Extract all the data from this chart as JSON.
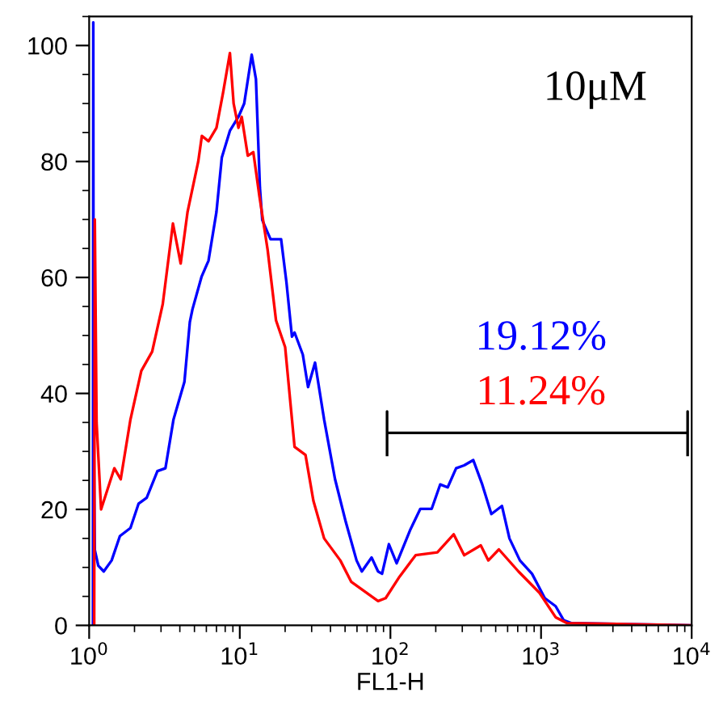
{
  "chart_data": {
    "type": "line",
    "xlabel": "FL1-H",
    "log": "x",
    "xlim": [
      1,
      10000
    ],
    "xticks": [
      {
        "value": 1,
        "label": "10$^{0}$"
      },
      {
        "value": 10,
        "label": "10$^{1}$"
      },
      {
        "value": 100,
        "label": "10$^{2}$"
      },
      {
        "value": 1000,
        "label": "10$^{3}$"
      },
      {
        "value": 10000,
        "label": "10$^{4}$"
      }
    ],
    "ylim": [
      0,
      105
    ],
    "yticks": [
      0,
      20,
      40,
      60,
      80,
      100
    ],
    "grid": false,
    "legend": false,
    "marker": "none",
    "line_style": "solid",
    "annotations": [
      "10μM",
      "19.12%",
      "11.24%"
    ],
    "series": [
      {
        "color": "#0000ff",
        "x": [
          1.06,
          1.065,
          1.07,
          1.09,
          1.15,
          1.25,
          1.41,
          1.6,
          1.88,
          2.13,
          2.41,
          2.84,
          3.21,
          3.63,
          4.29,
          4.66,
          4.85,
          5.57,
          6.2,
          7.0,
          7.6,
          8.6,
          9.8,
          10.7,
          12.0,
          12.8,
          13.6,
          14.1,
          16,
          18.8,
          20.4,
          22.2,
          23.1,
          26.2,
          28.4,
          31.6,
          36.3,
          42.9,
          50.6,
          59.6,
          64.6,
          75,
          82.8,
          88,
          97.7,
          110,
          135,
          158,
          188,
          214,
          240,
          273,
          309,
          355,
          407,
          468,
          550,
          617,
          724,
          871,
          1059,
          1250,
          1413,
          1585,
          10000
        ],
        "values": [
          0,
          104,
          37,
          13,
          10.3,
          9.3,
          11.2,
          15.4,
          16.8,
          21,
          22,
          26.6,
          27.1,
          35.5,
          42,
          52.3,
          54.5,
          60.1,
          62.9,
          71.3,
          80.7,
          85.3,
          87.7,
          90,
          98.4,
          94.2,
          75.5,
          69.9,
          66.6,
          66.6,
          59.2,
          49.8,
          50.5,
          46.7,
          41.1,
          45.3,
          35.5,
          25.2,
          17.8,
          11.2,
          9.3,
          11.7,
          9.3,
          8.9,
          14,
          10.7,
          16.4,
          20.1,
          20.1,
          24.3,
          23.8,
          27.1,
          27.6,
          28.5,
          24.3,
          19.2,
          20.6,
          15,
          11.2,
          8.9,
          4.7,
          3.3,
          0.9,
          0.4,
          0
        ]
      },
      {
        "color": "#000000",
        "x": [
          95,
          95,
          95,
          9400,
          9400,
          9400
        ],
        "values": [
          29.4,
          36.9,
          33.2,
          33.2,
          36.9,
          29.4
        ]
      },
      {
        "color": "#ff0000",
        "x": [
          1.08,
          1.09,
          1.12,
          1.2,
          1.47,
          1.62,
          1.88,
          2.22,
          2.62,
          3.08,
          3.6,
          4.05,
          4.5,
          5.3,
          5.6,
          6.2,
          7.0,
          7.75,
          8.6,
          9.1,
          9.8,
          10.3,
          11.3,
          12.3,
          13.5,
          15.3,
          17.4,
          20,
          23.1,
          27.3,
          30.8,
          36.3,
          46.5,
          55,
          82.8,
          93,
          115,
          147,
          205,
          263,
          309,
          398,
          447,
          525,
          708,
          977,
          1250,
          1480,
          10000
        ],
        "values": [
          0,
          70,
          35,
          20,
          27.1,
          25.2,
          35.5,
          43.9,
          47.2,
          55.4,
          69.3,
          62.4,
          71.3,
          80,
          84.4,
          83.5,
          85.8,
          91.9,
          98.7,
          90,
          85.8,
          87.7,
          81,
          81.6,
          74,
          64.8,
          52.6,
          48,
          30.8,
          29.4,
          21.5,
          15,
          11.2,
          7.5,
          4.2,
          4.7,
          8.4,
          12.1,
          12.6,
          15.7,
          12.1,
          13.8,
          11.2,
          13.1,
          9.3,
          5.6,
          1.4,
          0.4,
          0
        ]
      }
    ]
  }
}
